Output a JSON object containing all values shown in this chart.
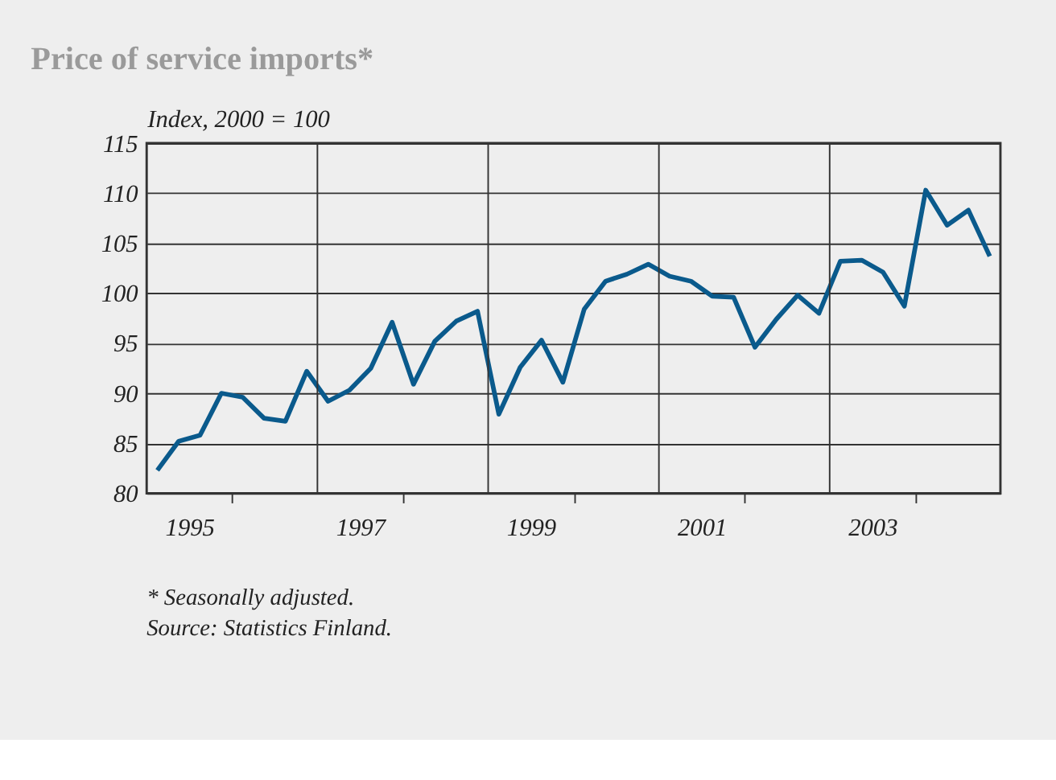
{
  "chart_data": {
    "type": "line",
    "title": "Price of service imports*",
    "ylabel": "Index, 2000 = 100",
    "x": [
      1995.125,
      1995.375,
      1995.625,
      1995.875,
      1996.125,
      1996.375,
      1996.625,
      1996.875,
      1997.125,
      1997.375,
      1997.625,
      1997.875,
      1998.125,
      1998.375,
      1998.625,
      1998.875,
      1999.125,
      1999.375,
      1999.625,
      1999.875,
      2000.125,
      2000.375,
      2000.625,
      2000.875,
      2001.125,
      2001.375,
      2001.625,
      2001.875,
      2002.125,
      2002.375,
      2002.625,
      2002.875,
      2003.125,
      2003.375,
      2003.625,
      2003.875,
      2004.125,
      2004.375,
      2004.625,
      2004.875
    ],
    "series": [
      {
        "color": "#0a5a8c",
        "values": [
          82.3,
          85.2,
          85.8,
          90.0,
          89.6,
          87.5,
          87.2,
          92.2,
          89.2,
          90.3,
          92.5,
          97.1,
          90.9,
          95.2,
          97.2,
          98.2,
          87.9,
          92.6,
          95.3,
          91.1,
          98.4,
          101.2,
          101.9,
          102.9,
          101.7,
          101.2,
          99.7,
          99.6,
          94.6,
          97.4,
          99.8,
          98.0,
          103.2,
          103.3,
          102.1,
          98.7,
          110.3,
          106.8,
          108.3,
          103.7
        ]
      }
    ],
    "xlim": [
      1995,
      2005
    ],
    "xticks": [
      {
        "value": 1995.5,
        "label": "1995"
      },
      {
        "value": 1996,
        "label": null
      },
      {
        "value": 1997.5,
        "label": "1997"
      },
      {
        "value": 1998,
        "label": null
      },
      {
        "value": 1999.5,
        "label": "1999"
      },
      {
        "value": 2000,
        "label": null
      },
      {
        "value": 2001.5,
        "label": "2001"
      },
      {
        "value": 2002,
        "label": null
      },
      {
        "value": 2003.5,
        "label": "2003"
      },
      {
        "value": 2004,
        "label": null
      }
    ],
    "ylim": [
      80,
      115
    ],
    "yticks": [
      80,
      85,
      90,
      95,
      100,
      105,
      110,
      115
    ],
    "grid": "y",
    "ref_lines": [
      {
        "axis": "x",
        "value": 1997,
        "color": "#333333"
      },
      {
        "axis": "x",
        "value": 1999,
        "color": "#333333"
      },
      {
        "axis": "x",
        "value": 2001,
        "color": "#333333"
      },
      {
        "axis": "x",
        "value": 2003,
        "color": "#333333"
      }
    ],
    "annotations": [
      "* Seasonally adjusted.",
      "Source: Statistics Finland."
    ],
    "marker": "none",
    "line_style": "solid"
  }
}
